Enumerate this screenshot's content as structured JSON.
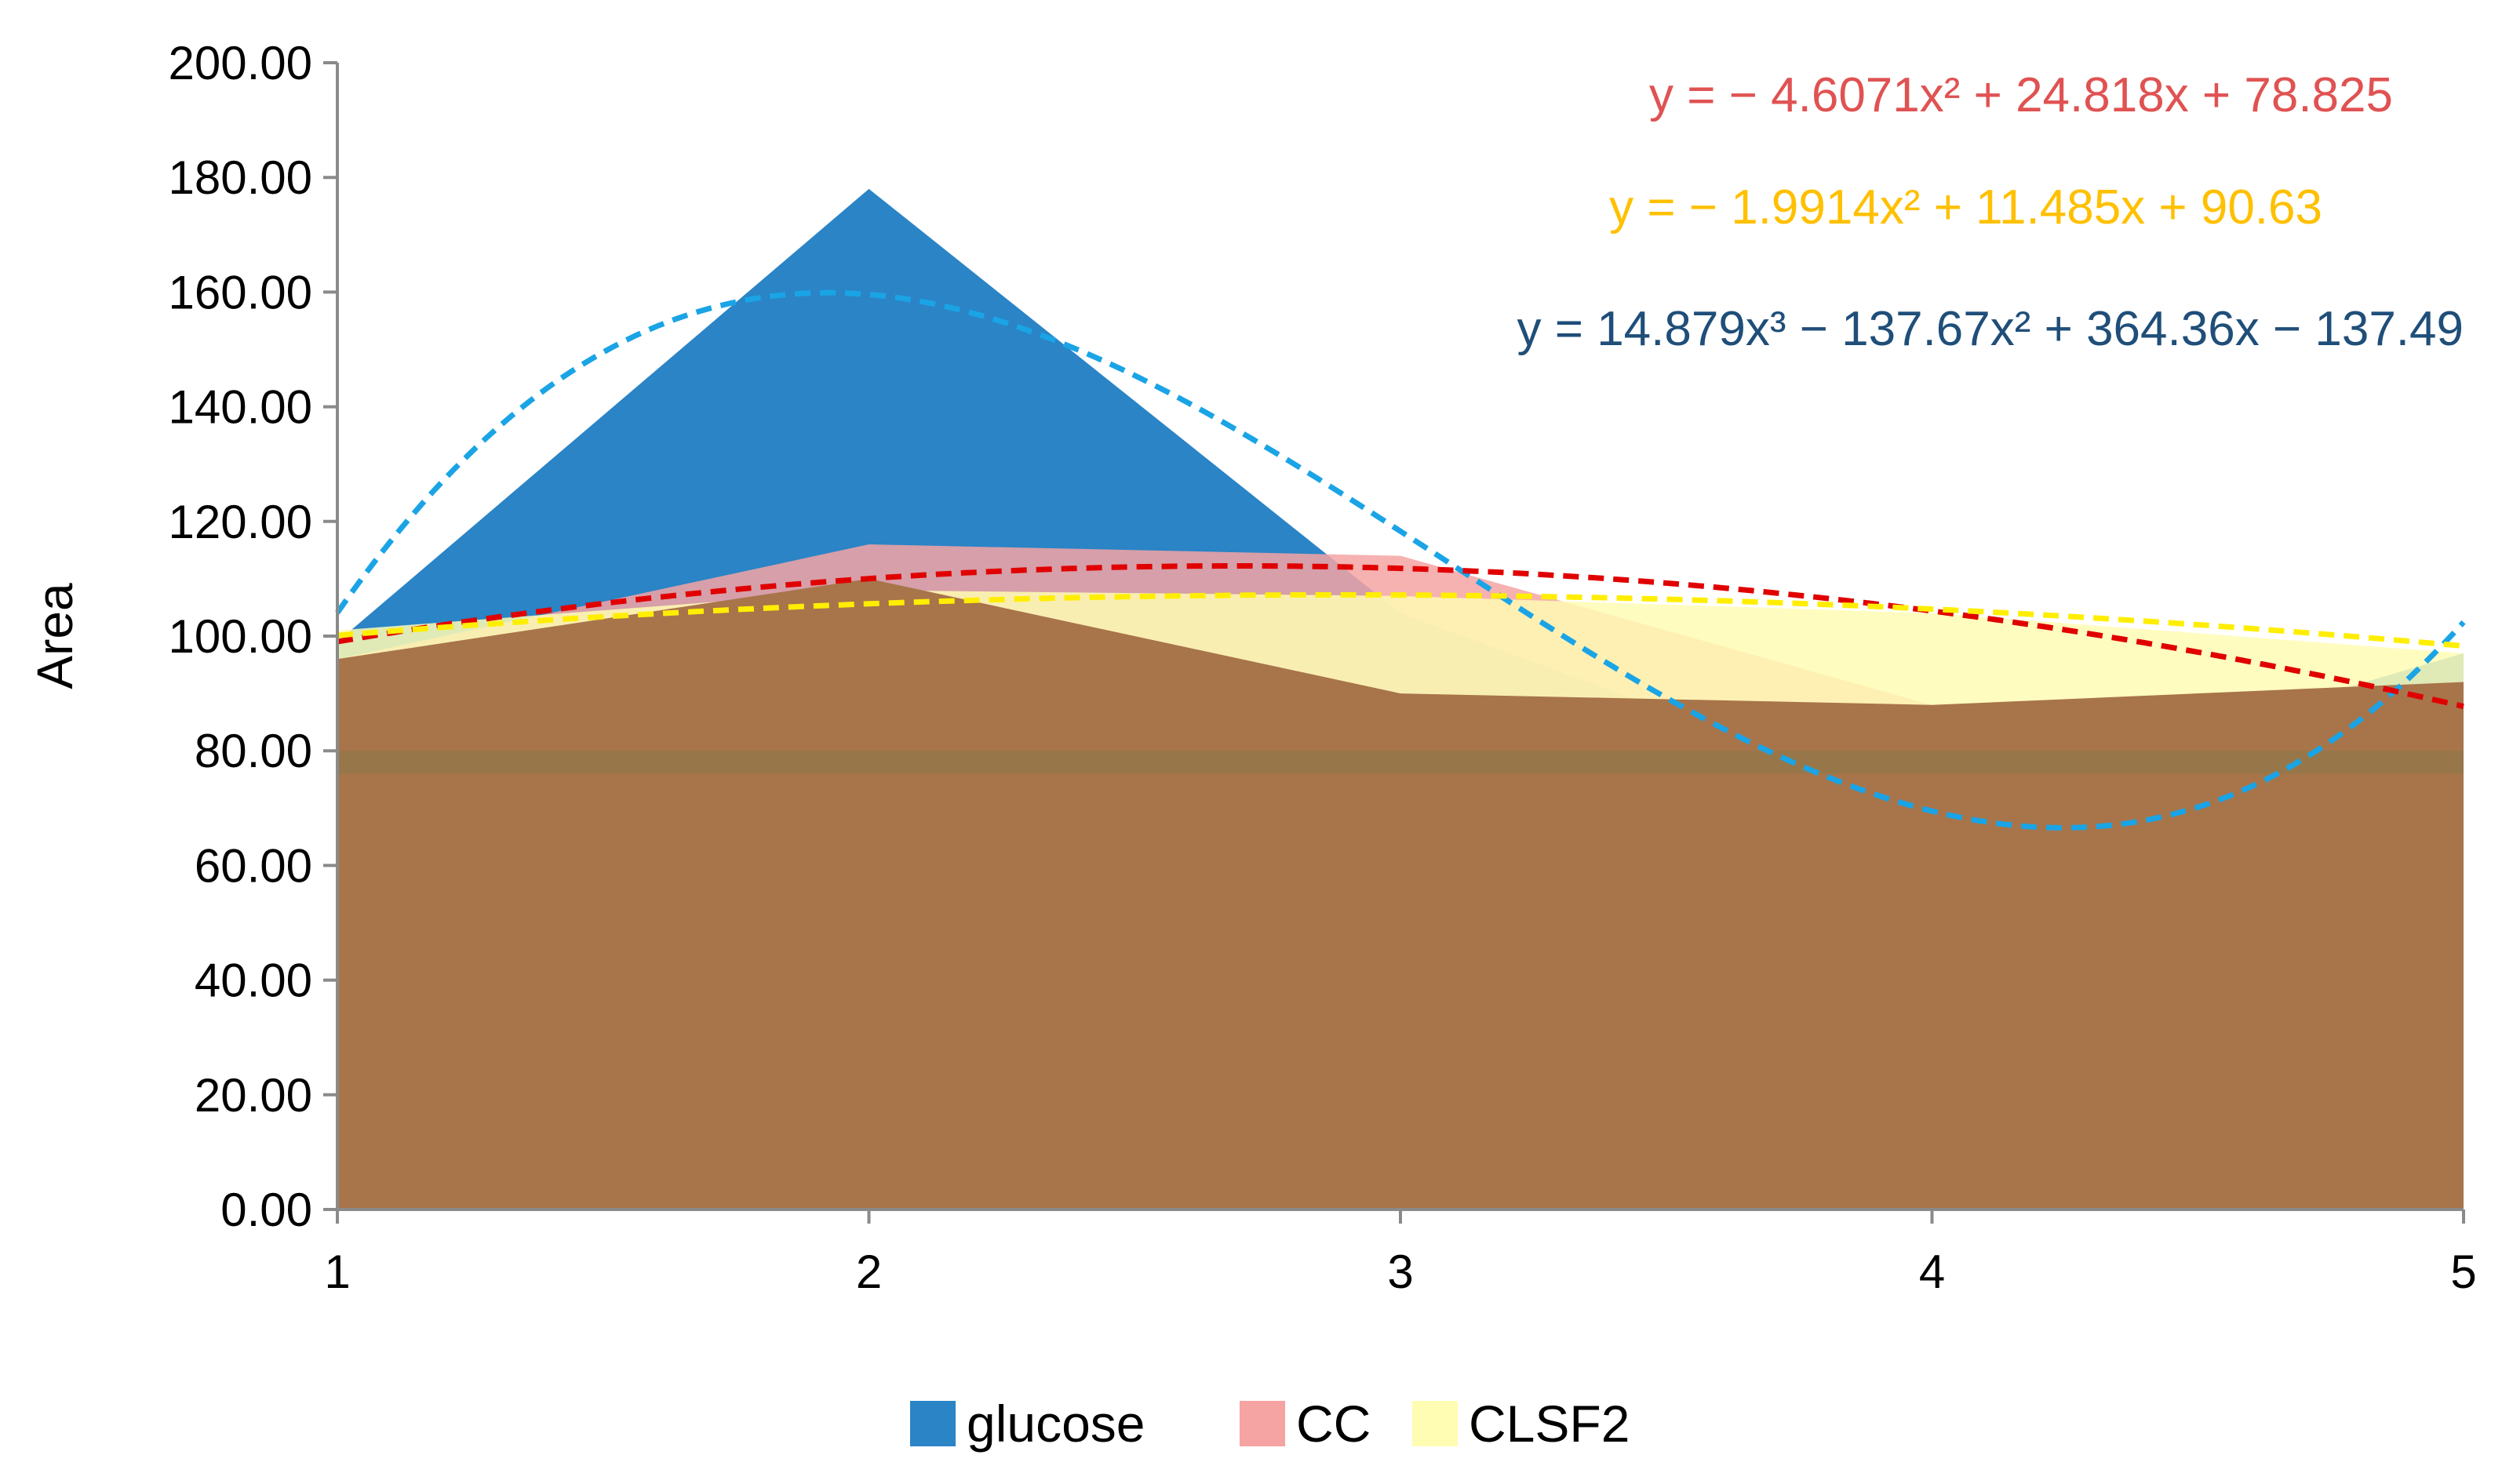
{
  "chart_data": {
    "type": "area",
    "title": "",
    "xlabel": "",
    "ylabel": "Area",
    "x": [
      1,
      2,
      3,
      4,
      5
    ],
    "xlim": [
      1,
      5
    ],
    "ylim": [
      0,
      200
    ],
    "yticks": [
      "0.00",
      "20.00",
      "40.00",
      "60.00",
      "80.00",
      "100.00",
      "120.00",
      "140.00",
      "160.00",
      "180.00",
      "200.00"
    ],
    "xticks": [
      "1",
      "2",
      "3",
      "4",
      "5"
    ],
    "grid": false,
    "legend_position": "bottom",
    "series": [
      {
        "name": "glucose",
        "values": [
          99,
          178,
          104,
          70,
          97
        ],
        "color": "#2a84c6"
      },
      {
        "name": "CC",
        "values": [
          96,
          116,
          114,
          88,
          92
        ],
        "color": "#f5a3a3"
      },
      {
        "name": "CLSF2",
        "values": [
          101,
          108,
          107,
          104,
          97
        ],
        "color": "#fffcb4"
      }
    ],
    "trendlines": [
      {
        "series": "glucose",
        "equation": "y = 14.879x³ −  137.67x² + 364.36x −  137.49",
        "coefficients": [
          14.879,
          -137.67,
          364.36,
          -137.49
        ],
        "color": "#1aa4e6",
        "label_color": "#1f4e79"
      },
      {
        "series": "CC",
        "equation": "y = − 4.6071x² + 24.818x + 78.825",
        "coefficients": [
          -4.6071,
          24.818,
          78.825
        ],
        "color": "#e00000",
        "label_color": "#e05252"
      },
      {
        "series": "CLSF2",
        "equation": "y = − 1.9914x² + 11.485x + 90.63",
        "coefficients": [
          -1.9914,
          11.485,
          90.63
        ],
        "color": "#ffee00",
        "label_color": "#ffc000"
      }
    ],
    "overlay_fill": [
      96,
      110,
      90,
      88,
      92
    ],
    "overlay_color": "#a8744a"
  }
}
